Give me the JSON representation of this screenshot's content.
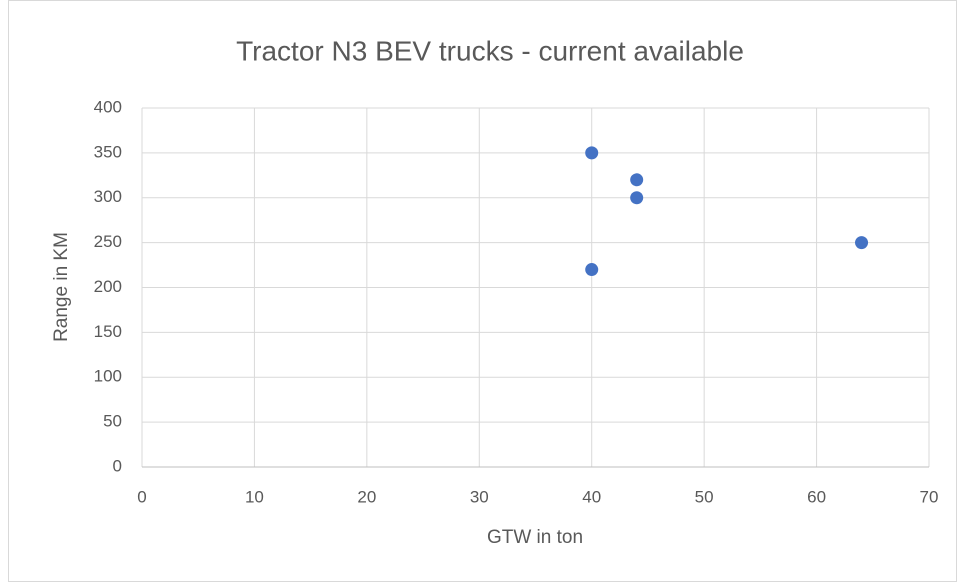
{
  "chart_data": {
    "type": "scatter",
    "title": "Tractor N3 BEV trucks - current available",
    "x_label": "GTW in ton",
    "y_label": "Range in KM",
    "series": [
      {
        "color": "#4472c4",
        "x": [
          40,
          44,
          44,
          40,
          64
        ],
        "values": [
          350,
          320,
          300,
          220,
          250
        ]
      }
    ],
    "xlim": [
      0,
      70
    ],
    "xticks": [
      0,
      10,
      20,
      30,
      40,
      50,
      60,
      70
    ],
    "ylim": [
      0,
      400
    ],
    "yticks": [
      0,
      50,
      100,
      150,
      200,
      250,
      300,
      350,
      400
    ],
    "grid": true
  }
}
